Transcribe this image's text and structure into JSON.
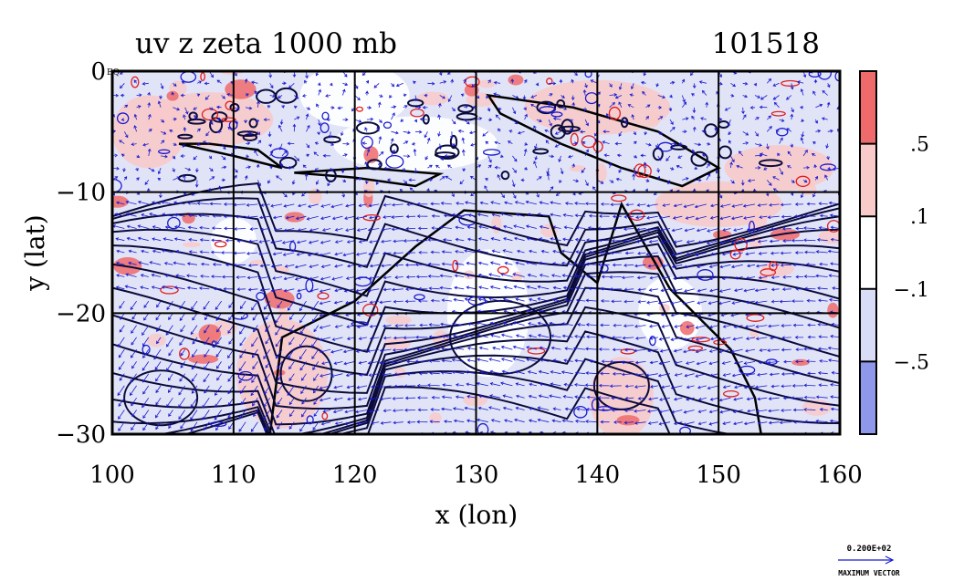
{
  "chart_data": {
    "type": "heatmap",
    "title": "uv z zeta 1000 mb",
    "subtitle": "101518",
    "xlabel": "x (lon)",
    "ylabel": "y (lat)",
    "xlim": [
      100,
      160
    ],
    "ylim": [
      -30,
      0
    ],
    "x_ticks": [
      100,
      110,
      120,
      130,
      140,
      150,
      160
    ],
    "y_ticks": [
      0,
      -10,
      -20,
      -30
    ],
    "x_tick_labels": [
      "100",
      "110",
      "120",
      "130",
      "140",
      "150",
      "160"
    ],
    "y_tick_labels": [
      "0",
      "−10",
      "−20",
      "−30"
    ],
    "y_tick_extra": "EQ",
    "grid": true,
    "colorbar": {
      "placement": "right",
      "levels": [
        0.5,
        0.1,
        -0.1,
        -0.5
      ],
      "level_labels": [
        ".5",
        ".1",
        "−.1",
        "−.5"
      ],
      "bands": [
        {
          "range": "> .5",
          "color": "#ef6b6b"
        },
        {
          "range": ".1 to .5",
          "color": "#f8caca"
        },
        {
          "range": "−.1 to .1",
          "color": "#ffffff"
        },
        {
          "range": "−.5 to −.1",
          "color": "#d9dcf6"
        },
        {
          "range": "< −.5",
          "color": "#8f97ea"
        }
      ]
    },
    "contour_colors": {
      "positive": "#e11d1d",
      "negative": "#1a1ad0",
      "height": "#0b0b3c"
    },
    "vector_color": "#1a1ad0",
    "vector_key": {
      "value_label": "0.200E+02",
      "caption": "MAXIMUM VECTOR"
    }
  }
}
